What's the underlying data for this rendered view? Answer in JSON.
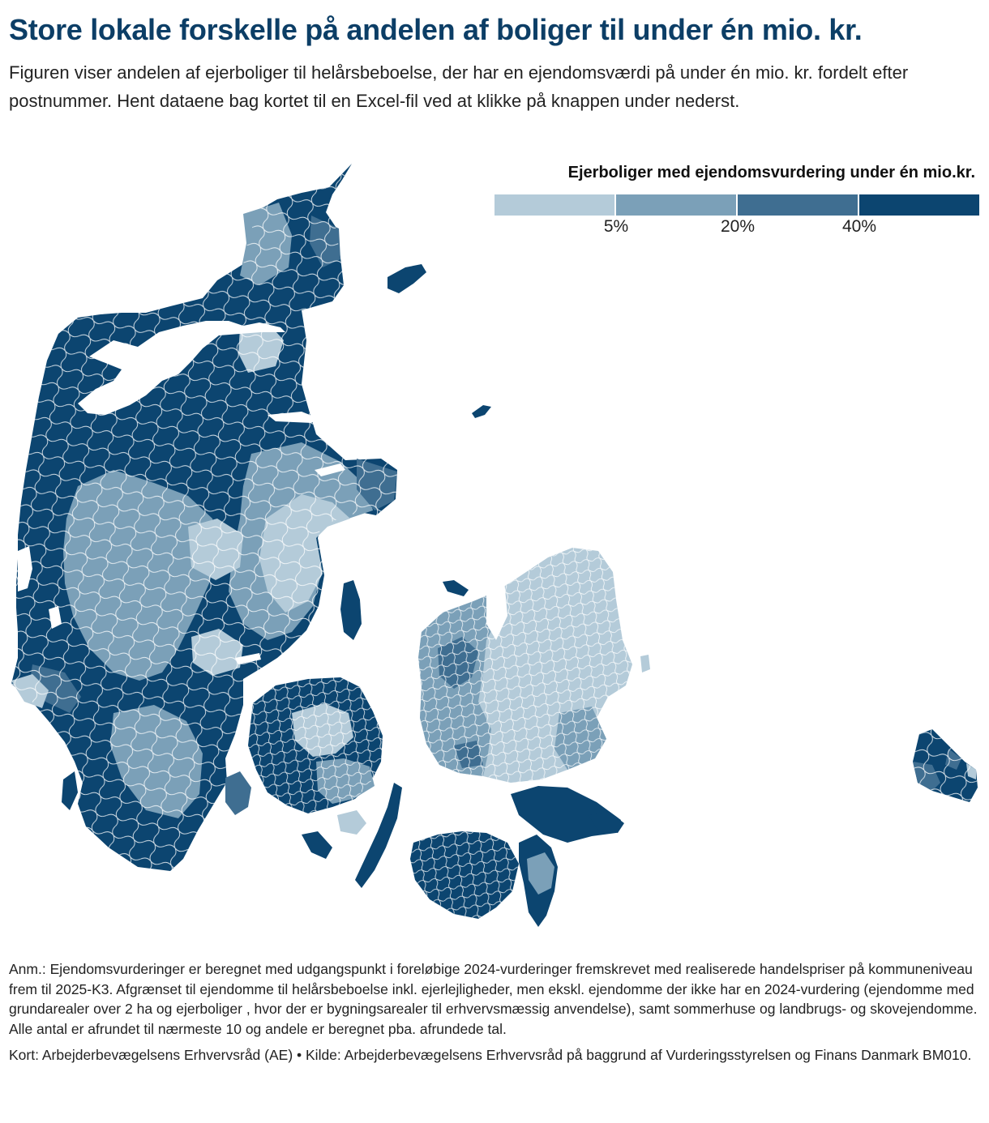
{
  "title": "Store lokale forskelle på andelen af boliger til under én mio. kr.",
  "subtitle": "Figuren viser andelen af ejerboliger til helårsbeboelse, der har en ejendomsværdi på under én mio. kr. fordelt efter postnummer. Hent dataene bag kortet til en Excel-fil ved at klikke på knappen under nederst.",
  "legend": {
    "title": "Ejerboliger med ejendomsvurdering under én mio.kr.",
    "thresholds": [
      "5%",
      "20%",
      "40%"
    ],
    "colors": [
      "#b4cbd9",
      "#7ba0b8",
      "#3f6e91",
      "#0c4570"
    ]
  },
  "map_colors": {
    "lightest": "#b4cbd9",
    "light": "#7ba0b8",
    "medium": "#3f6e91",
    "darkest": "#0c4570",
    "borders": "#ffffff"
  },
  "notes": {
    "annotation": "Anm.: Ejendomsvurderinger er beregnet med udgangspunkt i foreløbige 2024-vurderinger fremskrevet med realiserede handelspriser på kommuneniveau frem til 2025-K3. Afgrænset til ejendomme til helårsbeboelse inkl. ejerlejligheder, men ekskl. ejendomme der ikke har en 2024-vurdering (ejendomme med grundarealer over 2 ha og ejerboliger , hvor der er bygningsarealer til erhvervsmæssig anvendelse), samt sommerhuse og landbrugs- og skovejendomme. Alle antal er afrundet til nærmeste 10 og andele er beregnet pba. afrundede tal.",
    "source": "Kort: Arbejderbevægelsens Erhvervsråd (AE) • Kilde: Arbejderbevægelsens Erhvervsråd på baggrund af Vurderingsstyrelsen og Finans Danmark BM010."
  }
}
